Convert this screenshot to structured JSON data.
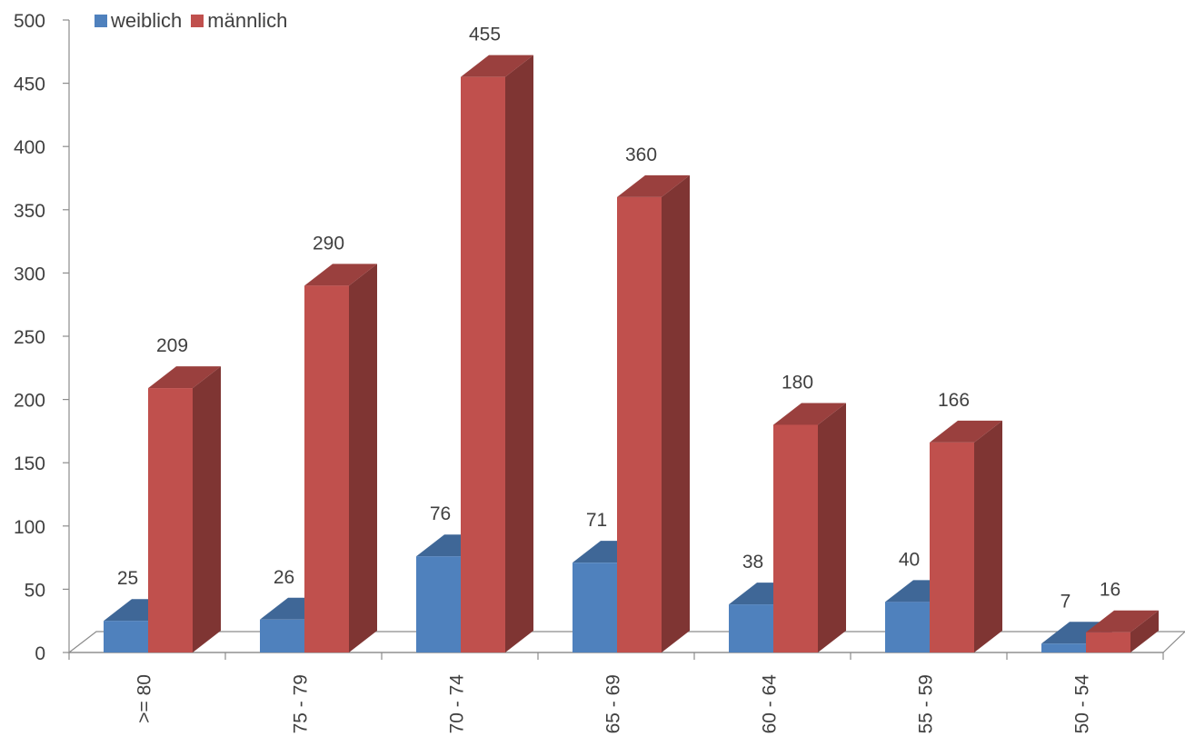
{
  "chart_data": {
    "type": "bar",
    "categories": [
      ">= 80",
      "75 - 79",
      "70 - 74",
      "65 - 69",
      "60 - 64",
      "55 - 59",
      "50 - 54"
    ],
    "series": [
      {
        "name": "weiblich",
        "values": [
          25,
          26,
          76,
          71,
          38,
          40,
          7
        ],
        "color": "#4f81bd"
      },
      {
        "name": "männlich",
        "values": [
          209,
          290,
          455,
          360,
          180,
          166,
          16
        ],
        "color": "#c0504d"
      }
    ],
    "title": "",
    "xlabel": "",
    "ylabel": "",
    "ylim": [
      0,
      500
    ],
    "yticks": [
      0,
      50,
      100,
      150,
      200,
      250,
      300,
      350,
      400,
      450,
      500
    ],
    "grid": false,
    "legend_position": "top-left",
    "style": "3d-column"
  }
}
